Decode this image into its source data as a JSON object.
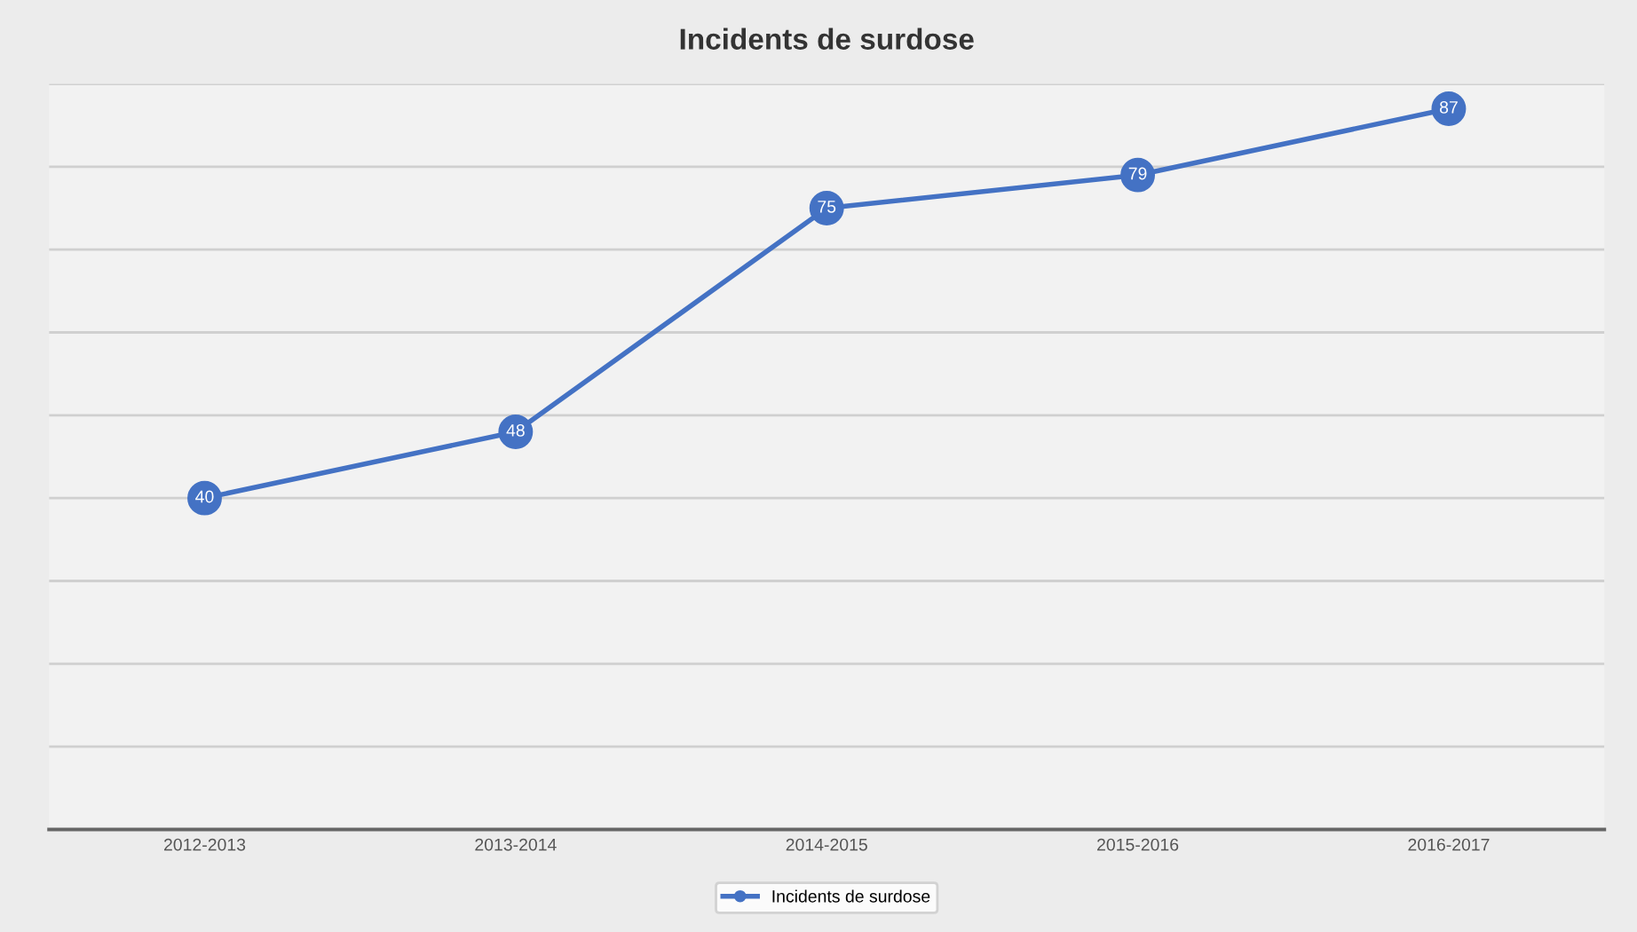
{
  "chart_data": {
    "type": "line",
    "title": "Incidents de surdose",
    "categories": [
      "2012-2013",
      "2013-2014",
      "2014-2015",
      "2015-2016",
      "2016-2017"
    ],
    "series": [
      {
        "name": "Incidents de surdose",
        "color": "#4472c4",
        "values": [
          40,
          48,
          75,
          79,
          87
        ]
      }
    ],
    "data_labels": true,
    "marker": "circle",
    "line_style": "solid",
    "ylim": [
      0,
      90
    ],
    "yticks": [
      {
        "value": 0,
        "label": null
      },
      {
        "value": 10,
        "label": null
      },
      {
        "value": 20,
        "label": null
      },
      {
        "value": 30,
        "label": null
      },
      {
        "value": 40,
        "label": null
      },
      {
        "value": 50,
        "label": null
      },
      {
        "value": 60,
        "label": null
      },
      {
        "value": 70,
        "label": null
      },
      {
        "value": 80,
        "label": null
      },
      {
        "value": 90,
        "label": null
      }
    ],
    "tick_labels": "x",
    "grid": "y",
    "legend": "bottom"
  }
}
